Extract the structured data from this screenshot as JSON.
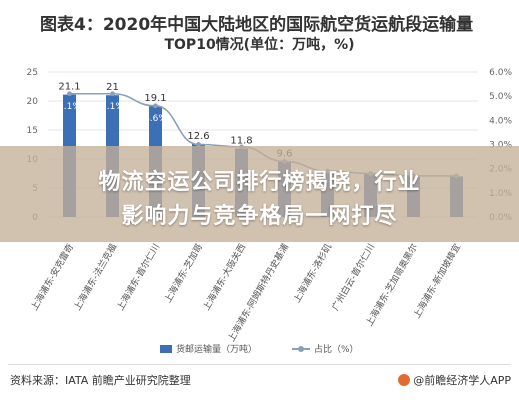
{
  "chart_data": {
    "type": "bar",
    "title": "图表4：2020年中国大陆地区的国际航空货运航段运输量",
    "subtitle": "TOP10情况(单位：万吨，%)",
    "categories": [
      "上海浦东-安克雷奇",
      "上海浦东-法兰克福",
      "上海浦东-首尔仁川",
      "上海浦东-芝加哥",
      "上海浦东-大阪关西",
      "上海浦东-阿姆斯特丹史基浦",
      "上海浦东-洛杉矶",
      "广州白云-首尔仁川",
      "上海浦东-芝加哥奥黑尔",
      "上海浦东-新加坡樟宜"
    ],
    "series": [
      {
        "name": "货邮运输量（万吨）",
        "values": [
          21.1,
          21.0,
          19.1,
          12.6,
          11.8,
          9.6,
          8.0,
          7.5,
          7.2,
          7.0
        ]
      },
      {
        "name": "占比（%）",
        "values": [
          5.1,
          5.1,
          4.6,
          3.0,
          2.9,
          2.3,
          1.9,
          1.8,
          1.7,
          1.7
        ]
      }
    ],
    "bar_labels": [
      "21.1",
      "21",
      "19.1",
      "12.6",
      "11.8",
      "9.6"
    ],
    "line_labels": [
      "5.1%",
      "5.1%",
      "4.6%"
    ],
    "y_left": {
      "range": [
        0,
        25
      ],
      "ticks": [
        "0",
        "5",
        "10",
        "15",
        "20",
        "25"
      ]
    },
    "y_right": {
      "range": [
        0,
        6
      ],
      "ticks": [
        "0.0%",
        "1.0%",
        "2.0%",
        "3.0%",
        "4.0%",
        "5.0%",
        "6.0%"
      ]
    },
    "colors": {
      "bar": "#3b6fb6",
      "line": "#8aa0b8",
      "grid": "#e6e6e6"
    }
  },
  "banner": {
    "line1": "物流空运公司排行榜揭晓，行业",
    "line2": "影响力与竞争格局一网打尽"
  },
  "legend": {
    "bar_label": "货邮运输量（万吨）",
    "line_label": "占比（%）"
  },
  "footer": {
    "source": "资料来源：IATA 前瞻产业研究院整理",
    "brand": "@前瞻经济学人APP"
  }
}
